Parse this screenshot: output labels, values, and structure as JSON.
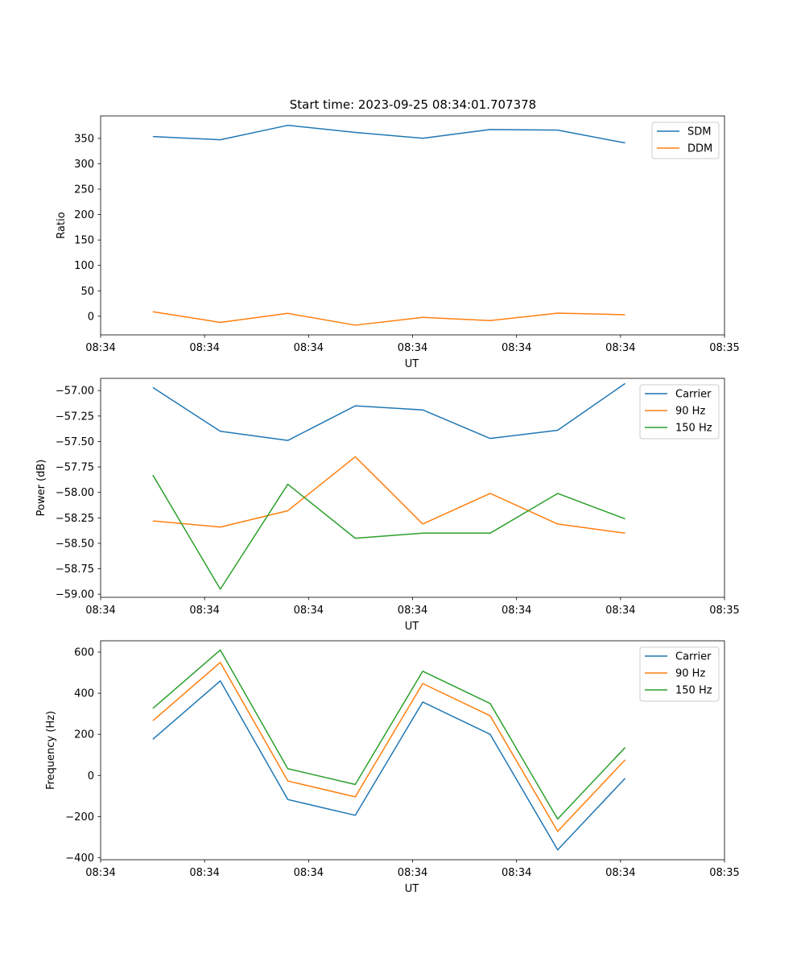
{
  "chart_data": [
    {
      "type": "line",
      "title": "Start time: 2023-09-25 08:34:01.707378",
      "xlabel": "UT",
      "ylabel": "Ratio",
      "x": [
        1,
        2,
        3,
        4,
        5,
        6,
        7,
        8
      ],
      "xlim": [
        0.226,
        9.473
      ],
      "x_ticks": [
        0.226,
        1.767,
        3.308,
        4.85,
        6.391,
        7.932,
        9.473
      ],
      "x_tick_labels": [
        "08:34",
        "08:34",
        "08:34",
        "08:34",
        "08:34",
        "08:34",
        "08:35"
      ],
      "ylim": [
        -36.7,
        394.2
      ],
      "y_ticks": [
        0,
        50,
        100,
        150,
        200,
        250,
        300,
        350
      ],
      "legend": "top-right",
      "series": [
        {
          "name": "SDM",
          "color": "#1f77b4",
          "values": [
            353.7,
            347.3,
            375.7,
            361.7,
            350.3,
            367.5,
            366.2,
            341.1
          ]
        },
        {
          "name": "DDM",
          "color": "#ff7f0e",
          "values": [
            8.8,
            -12.1,
            5.6,
            -17.6,
            -2.3,
            -8.6,
            6.1,
            2.9
          ]
        }
      ]
    },
    {
      "type": "line",
      "title": "",
      "xlabel": "UT",
      "ylabel": "Power (dB)",
      "x": [
        1,
        2,
        3,
        4,
        5,
        6,
        7,
        8
      ],
      "xlim": [
        0.226,
        9.473
      ],
      "x_ticks": [
        0.226,
        1.767,
        3.308,
        4.85,
        6.391,
        7.932,
        9.473
      ],
      "x_tick_labels": [
        "08:34",
        "08:34",
        "08:34",
        "08:34",
        "08:34",
        "08:34",
        "08:35"
      ],
      "ylim": [
        -59.03,
        -56.88
      ],
      "y_ticks": [
        -59.0,
        -58.75,
        -58.5,
        -58.25,
        -58.0,
        -57.75,
        -57.5,
        -57.25,
        -57.0
      ],
      "y_tick_labels": [
        "−59.00",
        "−58.75",
        "−58.50",
        "−58.25",
        "−58.00",
        "−57.75",
        "−57.50",
        "−57.25",
        "−57.00"
      ],
      "legend": "top-right",
      "series": [
        {
          "name": "Carrier",
          "color": "#1f77b4",
          "values": [
            -56.97,
            -57.4,
            -57.49,
            -57.15,
            -57.19,
            -57.47,
            -57.39,
            -56.93
          ]
        },
        {
          "name": "90 Hz",
          "color": "#ff7f0e",
          "values": [
            -58.28,
            -58.34,
            -58.18,
            -57.65,
            -58.31,
            -58.01,
            -58.31,
            -58.4
          ]
        },
        {
          "name": "150 Hz",
          "color": "#2ca02c",
          "values": [
            -57.83,
            -58.95,
            -57.92,
            -58.45,
            -58.4,
            -58.4,
            -58.01,
            -58.26
          ]
        }
      ]
    },
    {
      "type": "line",
      "title": "",
      "xlabel": "UT",
      "ylabel": "Frequency (Hz)",
      "x": [
        1,
        2,
        3,
        4,
        5,
        6,
        7,
        8
      ],
      "xlim": [
        0.226,
        9.473
      ],
      "x_ticks": [
        0.226,
        1.767,
        3.308,
        4.85,
        6.391,
        7.932,
        9.473
      ],
      "x_tick_labels": [
        "08:34",
        "08:34",
        "08:34",
        "08:34",
        "08:34",
        "08:34",
        "08:35"
      ],
      "ylim": [
        -410,
        655
      ],
      "y_ticks": [
        -400,
        -200,
        0,
        200,
        400,
        600
      ],
      "y_tick_labels": [
        "−400",
        "−200",
        "0",
        "200",
        "400",
        "600"
      ],
      "legend": "top-right",
      "series": [
        {
          "name": "Carrier",
          "color": "#1f77b4",
          "values": [
            176,
            460,
            -117,
            -194,
            357,
            200,
            -362,
            -14
          ]
        },
        {
          "name": "90 Hz",
          "color": "#ff7f0e",
          "values": [
            266,
            550,
            -27,
            -104,
            447,
            290,
            -272,
            76
          ]
        },
        {
          "name": "150 Hz",
          "color": "#2ca02c",
          "values": [
            326,
            610,
            33,
            -44,
            507,
            350,
            -212,
            136
          ]
        }
      ]
    }
  ]
}
